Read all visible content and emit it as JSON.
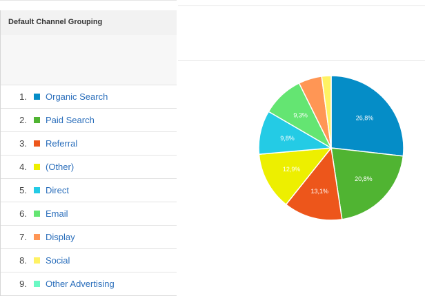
{
  "table": {
    "header": "Default Channel Grouping",
    "rows": [
      {
        "index": "1.",
        "label": "Organic Search",
        "color": "#058dc7"
      },
      {
        "index": "2.",
        "label": "Paid Search",
        "color": "#50b432"
      },
      {
        "index": "3.",
        "label": "Referral",
        "color": "#ed561b"
      },
      {
        "index": "4.",
        "label": "(Other)",
        "color": "#edef00"
      },
      {
        "index": "5.",
        "label": "Direct",
        "color": "#24cbe5"
      },
      {
        "index": "6.",
        "label": "Email",
        "color": "#64e572"
      },
      {
        "index": "7.",
        "label": "Display",
        "color": "#ff9655"
      },
      {
        "index": "8.",
        "label": "Social",
        "color": "#fff263"
      },
      {
        "index": "9.",
        "label": "Other Advertising",
        "color": "#6af9c4"
      }
    ]
  },
  "chart_data": {
    "type": "pie",
    "slices": [
      {
        "category": "Organic Search",
        "value": 26.8,
        "label": "26,8%",
        "color": "#058dc7"
      },
      {
        "category": "Paid Search",
        "value": 20.8,
        "label": "20,8%",
        "color": "#50b432"
      },
      {
        "category": "Referral",
        "value": 13.1,
        "label": "13,1%",
        "color": "#ed561b"
      },
      {
        "category": "(Other)",
        "value": 12.9,
        "label": "12,9%",
        "color": "#edef00"
      },
      {
        "category": "Direct",
        "value": 9.8,
        "label": "9,8%",
        "color": "#24cbe5"
      },
      {
        "category": "Email",
        "value": 9.3,
        "label": "9,3%",
        "color": "#64e572"
      },
      {
        "category": "Display",
        "value": 5.2,
        "label": "",
        "color": "#ff9655"
      },
      {
        "category": "Social",
        "value": 2.1,
        "label": "",
        "color": "#fff263"
      }
    ]
  }
}
